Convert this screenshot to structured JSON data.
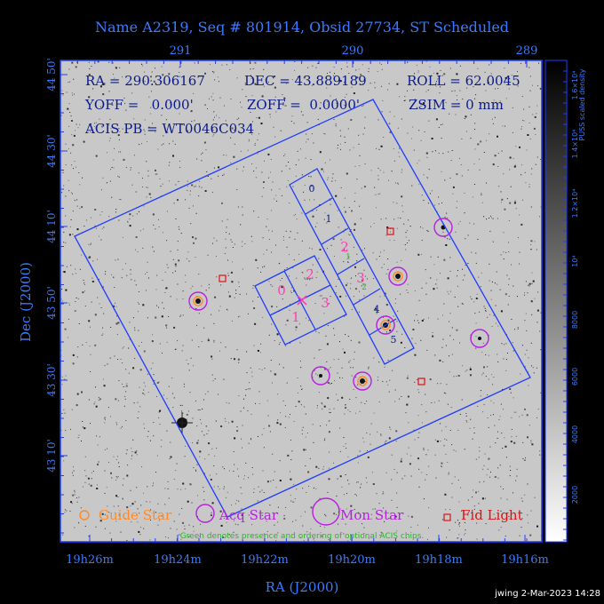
{
  "title": "Name A2319, Seq # 801914, Obsid 27734, ST Scheduled",
  "info": {
    "ra": "RA = 290.306167",
    "dec": "DEC = 43.889189",
    "roll": "ROLL = 62.0045",
    "yoff": "YOFF =   0.000'",
    "zoff": "ZOFF =  0.0000'",
    "zsim": "ZSIM = 0 mm",
    "acis": "ACIS PB = WT0046C034"
  },
  "axes": {
    "top_ticks": [
      "291",
      "290",
      "289"
    ],
    "left_ticks": [
      "44 50'",
      "44 30'",
      "44 10'",
      "43 50'",
      "43 30'",
      "43 10'"
    ],
    "bottom_ticks": [
      "19h26m",
      "19h24m",
      "19h22m",
      "19h20m",
      "19h18m",
      "19h16m"
    ],
    "xlabel": "RA (J2000)",
    "ylabel": "Dec (J2000)"
  },
  "colorbar": {
    "label": "PUSS scaled density",
    "ticks": [
      "2000",
      "4000",
      "6000",
      "8000",
      "10⁴",
      "1.2×10⁴",
      "1.4×10⁴",
      "1.6×10⁴"
    ]
  },
  "chips": {
    "imaging": [
      "0",
      "2",
      "1",
      "3"
    ],
    "spectroscopy": [
      "0",
      "1",
      "2",
      "3",
      "4",
      "5"
    ],
    "optional_marks": [
      "1",
      "2"
    ]
  },
  "legend": {
    "guide": "Guide Star",
    "acq": "Acq Star",
    "mon": "Mon Star",
    "fid": "Fid Light",
    "note": "Green denotes presence and ordering of optional ACIS chips."
  },
  "footer": "jwing  2-Mar-2023 14:28",
  "colors": {
    "frame": "#1f3cff",
    "text": "#2f6dff",
    "chip_label_pink": "#ff3fb0",
    "guide": "#ff8a2a",
    "acq": "#b620e0",
    "fid": "#e01010",
    "optional": "#22bb22"
  }
}
